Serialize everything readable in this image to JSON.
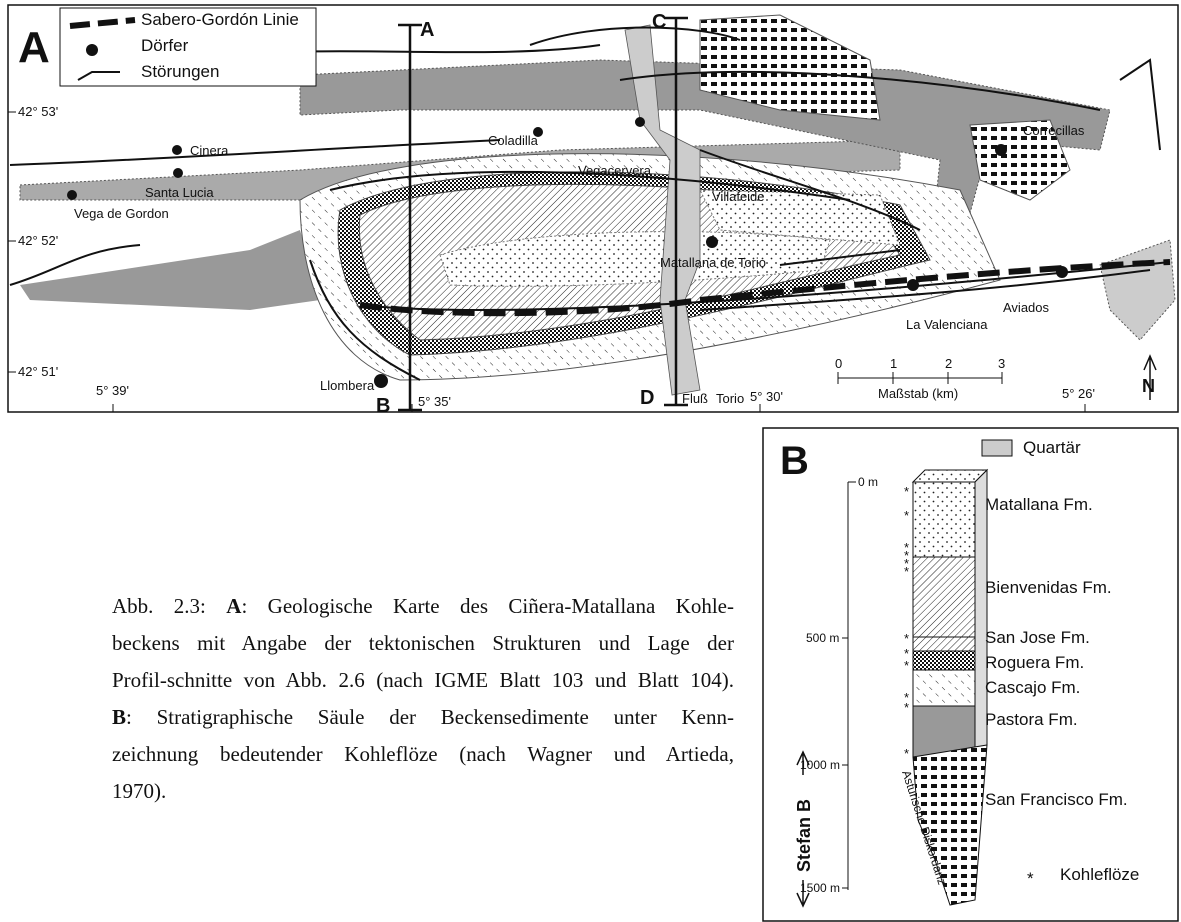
{
  "map": {
    "panel_label": "A",
    "legend": {
      "line": "Sabero-Gordón Linie",
      "villages": "Dörfer",
      "faults": "Störungen"
    },
    "sections": {
      "a": "A",
      "b": "B",
      "c": "C",
      "d": "D"
    },
    "latitudes": [
      "42° 53'",
      "42° 52'",
      "42° 51'"
    ],
    "longitudes": [
      "5° 39'",
      "5° 35'",
      "5° 30'",
      "5° 26'"
    ],
    "places": [
      "Cinera",
      "Coladilla",
      "Vegacervera",
      "Correcillas",
      "Villafeide",
      "Santa Lucia",
      "Vega de Gordon",
      "Matallana de Torio",
      "La Valenciana",
      "Aviados",
      "Llombera"
    ],
    "river": [
      "Fluß",
      "Torio"
    ],
    "scale": {
      "ticks": [
        "0",
        "1",
        "2",
        "3"
      ],
      "label": "Maßstab (km)"
    },
    "north": "N"
  },
  "column": {
    "panel_label": "B",
    "quaternary": "Quartär",
    "depths": [
      "0 m",
      "500 m",
      "1000 m",
      "1500 m"
    ],
    "formations": [
      "Matallana Fm.",
      "Bienvenidas Fm.",
      "San Jose Fm.",
      "Roguera Fm.",
      "Cascajo Fm.",
      "Pastora Fm.",
      "San Francisco Fm."
    ],
    "stage": "Stefan B",
    "unconformity": "Asturische Diskordanz",
    "star": "*",
    "coal": "Kohleflöze"
  },
  "caption": {
    "lines": [
      [
        {
          "text": "Abb. 2.3: "
        },
        {
          "text": "A",
          "bold": true
        },
        {
          "text": ": Geologische Karte des Ciñera-Matallana Kohle-"
        }
      ],
      [
        {
          "text": "beckens mit Angabe der tektonischen Strukturen und Lage der"
        }
      ],
      [
        {
          "text": "Profil-schnitte von Abb. 2.6 (nach IGME Blatt 103 und Blatt 104)."
        }
      ],
      [
        {
          "text": "B",
          "bold": true
        },
        {
          "text": ": Stratigraphische Säule der Beckensedimente unter Kenn-"
        }
      ],
      [
        {
          "text": "zeichnung bedeutender Kohleflöze (nach Wagner und Artieda,"
        }
      ],
      [
        {
          "text": "1970)."
        }
      ]
    ]
  }
}
